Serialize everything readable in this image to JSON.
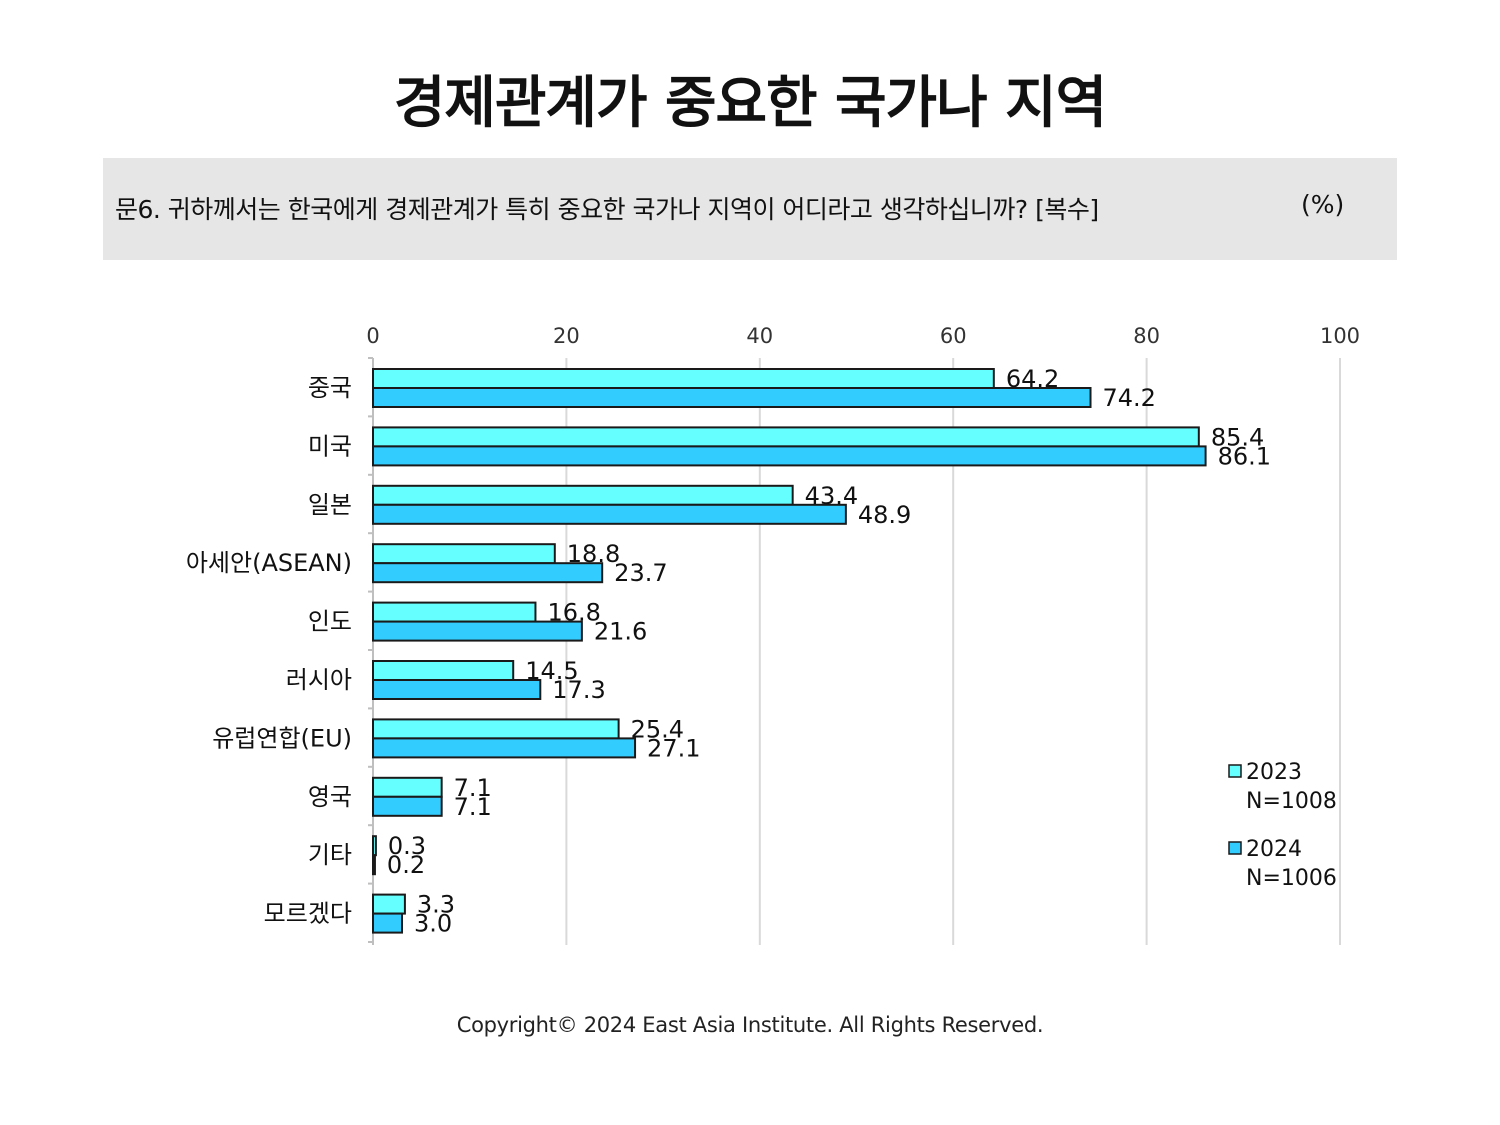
{
  "title": "경제관계가 중요한 국가나 지역",
  "question": "문6. 귀하께서는 한국에게 경제관계가 특히 중요한 국가나 지역이 어디라고 생각하십니까? [복수]",
  "unit": "(%)",
  "copyright": "Copyright© 2024 East Asia Institute. All Rights Reserved.",
  "chart_data": {
    "type": "bar",
    "orientation": "horizontal",
    "categories": [
      "중국",
      "미국",
      "일본",
      "아세안(ASEAN)",
      "인도",
      "러시아",
      "유럽연합(EU)",
      "영국",
      "기타",
      "모르겠다"
    ],
    "series": [
      {
        "name": "2023",
        "note": "N=1008",
        "color": "#66ffff",
        "values": [
          64.2,
          85.4,
          43.4,
          18.8,
          16.8,
          14.5,
          25.4,
          7.1,
          0.3,
          3.3
        ],
        "labels": [
          "64.2",
          "85.4",
          "43.4",
          "18.8",
          "16.8",
          "14.5",
          "25.4",
          "7.1",
          "0.3",
          "3.3"
        ]
      },
      {
        "name": "2024",
        "note": "N=1006",
        "color": "#33ccff",
        "values": [
          74.2,
          86.1,
          48.9,
          23.7,
          21.6,
          17.3,
          27.1,
          7.1,
          0.2,
          3.0
        ],
        "labels": [
          "74.2",
          "86.1",
          "48.9",
          "23.7",
          "21.6",
          "17.3",
          "27.1",
          "7.1",
          "0.2",
          "3.0"
        ]
      }
    ],
    "xlim": [
      0,
      100
    ],
    "xticks": [
      0,
      20,
      40,
      60,
      80,
      100
    ],
    "axis_position": "top",
    "grid": true,
    "legend_position": "right"
  }
}
